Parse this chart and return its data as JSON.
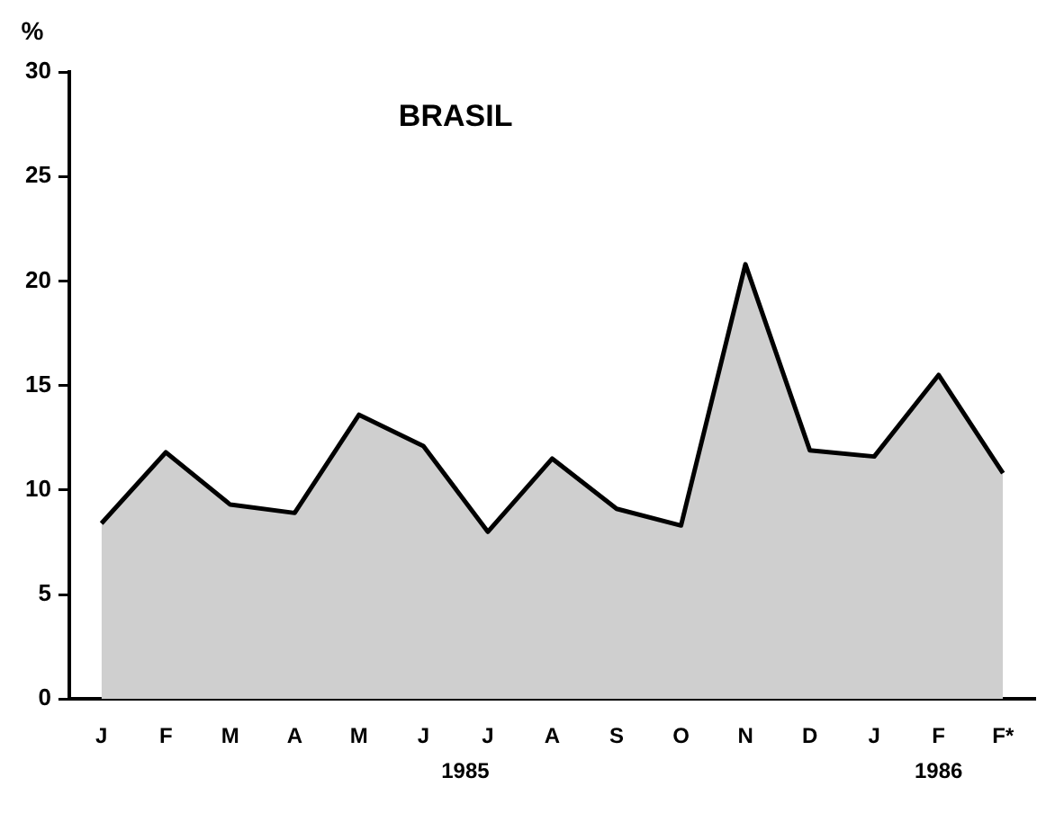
{
  "chart_data": {
    "type": "area",
    "title": "BRASIL",
    "ylabel": "%",
    "categories": [
      "J",
      "F",
      "M",
      "A",
      "M",
      "J",
      "J",
      "A",
      "S",
      "O",
      "N",
      "D",
      "J",
      "F",
      "F*"
    ],
    "values": [
      8.4,
      11.8,
      9.3,
      8.9,
      13.6,
      12.1,
      8.0,
      11.5,
      9.1,
      8.3,
      20.8,
      11.9,
      11.6,
      15.5,
      10.8
    ],
    "color": "#000000",
    "ylim": [
      0,
      30
    ],
    "yticks": [
      0,
      5,
      10,
      15,
      20,
      25,
      30
    ],
    "grid": false,
    "legend": false,
    "marker": "none",
    "line_style": "solid",
    "annotations": [
      "1985",
      "1986"
    ]
  }
}
